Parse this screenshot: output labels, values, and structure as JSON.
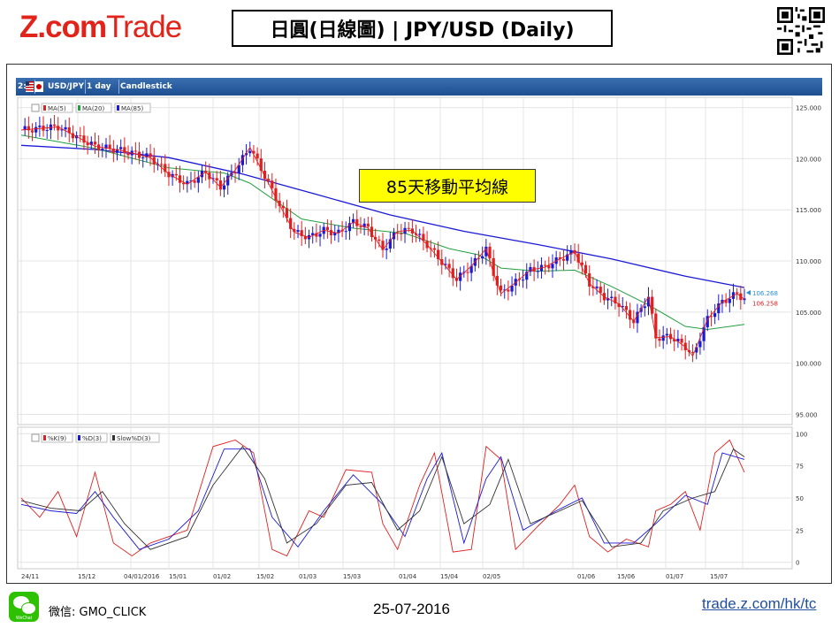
{
  "header": {
    "logo_z": "Z.com",
    "logo_trade": "Trade",
    "title": "日圓(日線圖) | JPY/USD  (Daily)"
  },
  "chart_header": {
    "tabs": [
      "USD/JPY",
      "1 day",
      "Candlestick"
    ],
    "prefix": "2:"
  },
  "indicators": {
    "price_legend": [
      "MA(5)",
      "MA(20)",
      "MA(85)"
    ],
    "osc_legend": [
      "%K(9)",
      "%D(3)",
      "Slow%D(3)"
    ]
  },
  "annotation": "85天移動平均線",
  "price_labels": {
    "last_a": "106.268",
    "last_b": "106.258"
  },
  "colors": {
    "up": "#1a1ad6",
    "down": "#e02020",
    "ma5": "#e02020",
    "ma20": "#22a040",
    "ma85": "#1a1ad6",
    "slowd": "#333333",
    "logo_red": "#e2231a",
    "url_blue": "#1f4e9c",
    "wechat_green": "#2dc100"
  },
  "chart_data": {
    "type": "candlestick",
    "series_name": "USD/JPY",
    "interval": "1 day",
    "x_tick_labels": [
      "24/11",
      "15/12",
      "04/01/2016",
      "15/01",
      "01/02",
      "15/02",
      "01/03",
      "15/03",
      "01/04",
      "15/04",
      "02/05",
      "01/06",
      "15/06",
      "01/07",
      "15/07"
    ],
    "price_axis": {
      "ticks": [
        125.0,
        120.0,
        115.0,
        110.0,
        105.0,
        100.0,
        95.0
      ],
      "ylim": [
        94,
        126
      ]
    },
    "osc_axis": {
      "ticks": [
        100,
        75,
        50,
        25,
        0
      ],
      "ylim": [
        -5,
        105
      ]
    },
    "close_path": [
      [
        0,
        122.8
      ],
      [
        10,
        123.1
      ],
      [
        20,
        121.2
      ],
      [
        27,
        120.8
      ],
      [
        35,
        120.1
      ],
      [
        40,
        118.5
      ],
      [
        45,
        117.5
      ],
      [
        50,
        118.7
      ],
      [
        54,
        117.2
      ],
      [
        58,
        118.9
      ],
      [
        62,
        121.1
      ],
      [
        66,
        118.3
      ],
      [
        70,
        115.5
      ],
      [
        74,
        112.8
      ],
      [
        78,
        112.3
      ],
      [
        82,
        113.0
      ],
      [
        86,
        112.7
      ],
      [
        90,
        113.8
      ],
      [
        94,
        113.2
      ],
      [
        98,
        111.1
      ],
      [
        102,
        112.9
      ],
      [
        106,
        113.0
      ],
      [
        110,
        111.6
      ],
      [
        114,
        109.9
      ],
      [
        118,
        108.2
      ],
      [
        122,
        109.5
      ],
      [
        126,
        111.2
      ],
      [
        128,
        108.8
      ],
      [
        130,
        106.8
      ],
      [
        134,
        107.9
      ],
      [
        138,
        109.1
      ],
      [
        142,
        109.4
      ],
      [
        146,
        110.2
      ],
      [
        150,
        110.9
      ],
      [
        154,
        107.8
      ],
      [
        158,
        106.5
      ],
      [
        162,
        105.8
      ],
      [
        166,
        104.1
      ],
      [
        170,
        106.5
      ],
      [
        172,
        102.5
      ],
      [
        176,
        102.6
      ],
      [
        180,
        101.6
      ],
      [
        182,
        100.7
      ],
      [
        186,
        104.3
      ],
      [
        190,
        106.0
      ],
      [
        194,
        106.8
      ],
      [
        196,
        106.26
      ]
    ],
    "ma85_path": [
      [
        0,
        121.3
      ],
      [
        20,
        120.9
      ],
      [
        40,
        120.1
      ],
      [
        60,
        118.5
      ],
      [
        80,
        116.5
      ],
      [
        100,
        114.5
      ],
      [
        120,
        112.9
      ],
      [
        140,
        111.6
      ],
      [
        160,
        110.2
      ],
      [
        180,
        108.5
      ],
      [
        196,
        107.4
      ]
    ],
    "ma20_path": [
      [
        0,
        122.3
      ],
      [
        20,
        121.0
      ],
      [
        40,
        119.1
      ],
      [
        55,
        118.6
      ],
      [
        62,
        117.6
      ],
      [
        76,
        114.1
      ],
      [
        90,
        113.2
      ],
      [
        104,
        112.7
      ],
      [
        116,
        111.2
      ],
      [
        124,
        110.6
      ],
      [
        130,
        109.3
      ],
      [
        140,
        109.0
      ],
      [
        150,
        109.1
      ],
      [
        160,
        107.5
      ],
      [
        170,
        105.7
      ],
      [
        180,
        103.6
      ],
      [
        186,
        103.3
      ],
      [
        196,
        103.8
      ]
    ],
    "stoch_k": [
      [
        0,
        50
      ],
      [
        5,
        35
      ],
      [
        10,
        55
      ],
      [
        15,
        20
      ],
      [
        20,
        70
      ],
      [
        25,
        15
      ],
      [
        30,
        5
      ],
      [
        35,
        15
      ],
      [
        45,
        25
      ],
      [
        52,
        90
      ],
      [
        58,
        95
      ],
      [
        63,
        85
      ],
      [
        68,
        10
      ],
      [
        72,
        5
      ],
      [
        78,
        40
      ],
      [
        82,
        35
      ],
      [
        88,
        72
      ],
      [
        95,
        70
      ],
      [
        98,
        30
      ],
      [
        102,
        10
      ],
      [
        108,
        60
      ],
      [
        112,
        85
      ],
      [
        117,
        8
      ],
      [
        122,
        10
      ],
      [
        126,
        90
      ],
      [
        130,
        80
      ],
      [
        134,
        10
      ],
      [
        140,
        28
      ],
      [
        146,
        45
      ],
      [
        150,
        60
      ],
      [
        154,
        20
      ],
      [
        159,
        8
      ],
      [
        164,
        18
      ],
      [
        170,
        12
      ],
      [
        172,
        40
      ],
      [
        176,
        45
      ],
      [
        180,
        55
      ],
      [
        184,
        25
      ],
      [
        188,
        85
      ],
      [
        192,
        95
      ],
      [
        196,
        70
      ]
    ],
    "stoch_d": [
      [
        0,
        45
      ],
      [
        8,
        40
      ],
      [
        15,
        38
      ],
      [
        20,
        55
      ],
      [
        25,
        35
      ],
      [
        32,
        10
      ],
      [
        40,
        18
      ],
      [
        48,
        40
      ],
      [
        55,
        88
      ],
      [
        62,
        88
      ],
      [
        68,
        35
      ],
      [
        75,
        12
      ],
      [
        82,
        40
      ],
      [
        90,
        68
      ],
      [
        98,
        45
      ],
      [
        104,
        20
      ],
      [
        110,
        65
      ],
      [
        114,
        85
      ],
      [
        120,
        15
      ],
      [
        126,
        65
      ],
      [
        130,
        82
      ],
      [
        136,
        25
      ],
      [
        145,
        40
      ],
      [
        152,
        50
      ],
      [
        158,
        15
      ],
      [
        166,
        15
      ],
      [
        172,
        30
      ],
      [
        180,
        52
      ],
      [
        186,
        45
      ],
      [
        190,
        85
      ],
      [
        196,
        80
      ]
    ],
    "stoch_slowd": [
      [
        0,
        48
      ],
      [
        8,
        42
      ],
      [
        16,
        40
      ],
      [
        22,
        55
      ],
      [
        28,
        30
      ],
      [
        35,
        10
      ],
      [
        45,
        20
      ],
      [
        52,
        60
      ],
      [
        60,
        90
      ],
      [
        66,
        65
      ],
      [
        72,
        15
      ],
      [
        80,
        30
      ],
      [
        88,
        60
      ],
      [
        95,
        62
      ],
      [
        102,
        25
      ],
      [
        108,
        40
      ],
      [
        114,
        82
      ],
      [
        120,
        30
      ],
      [
        127,
        45
      ],
      [
        132,
        80
      ],
      [
        138,
        30
      ],
      [
        146,
        40
      ],
      [
        152,
        48
      ],
      [
        160,
        12
      ],
      [
        168,
        15
      ],
      [
        174,
        40
      ],
      [
        182,
        50
      ],
      [
        188,
        55
      ],
      [
        193,
        88
      ],
      [
        196,
        82
      ]
    ]
  },
  "footer": {
    "wechat_label": "微信: GMO_CLICK",
    "wechat_icon_text": "WeChat",
    "date": "25-07-2016",
    "url": "trade.z.com/hk/tc"
  }
}
